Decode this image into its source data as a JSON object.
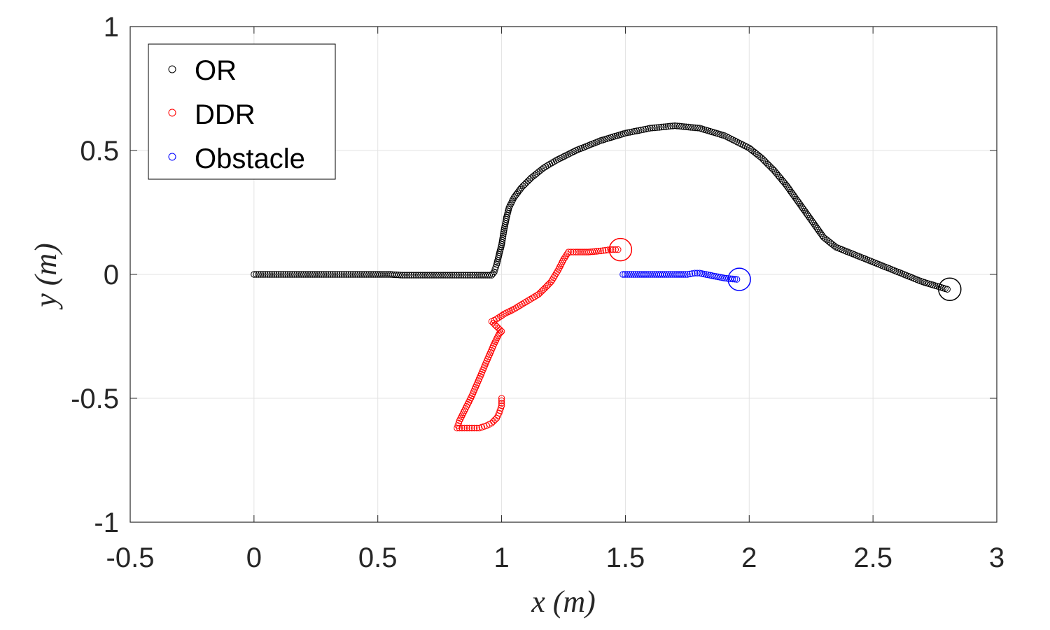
{
  "chart_data": {
    "type": "scatter",
    "title": "",
    "xlabel": "x (m)",
    "ylabel": "y (m)",
    "xlim": [
      -0.5,
      3
    ],
    "ylim": [
      -1,
      1
    ],
    "xticks": [
      -0.5,
      0,
      0.5,
      1,
      1.5,
      2,
      2.5,
      3
    ],
    "yticks": [
      -1,
      -0.5,
      0,
      0.5,
      1
    ],
    "xtick_labels": [
      "-0.5",
      "0",
      "0.5",
      "1",
      "1.5",
      "2",
      "2.5",
      "3"
    ],
    "ytick_labels": [
      "-1",
      "-0.5",
      "0",
      "0.5",
      "1"
    ],
    "grid": true,
    "legend_position": "top-left",
    "marker": "open-circle",
    "series": [
      {
        "name": "OR",
        "color": "#000000",
        "points": [
          [
            0.0,
            0.0
          ],
          [
            0.1,
            0.0
          ],
          [
            0.2,
            0.0
          ],
          [
            0.3,
            0.0
          ],
          [
            0.4,
            0.0
          ],
          [
            0.5,
            0.0
          ],
          [
            0.55,
            0.0
          ],
          [
            0.6,
            -0.003
          ],
          [
            0.7,
            -0.003
          ],
          [
            0.8,
            -0.003
          ],
          [
            0.9,
            -0.003
          ],
          [
            0.96,
            -0.003
          ],
          [
            0.97,
            0.01
          ],
          [
            0.98,
            0.04
          ],
          [
            0.99,
            0.08
          ],
          [
            1.0,
            0.12
          ],
          [
            1.01,
            0.18
          ],
          [
            1.02,
            0.23
          ],
          [
            1.03,
            0.27
          ],
          [
            1.05,
            0.31
          ],
          [
            1.08,
            0.35
          ],
          [
            1.12,
            0.39
          ],
          [
            1.17,
            0.43
          ],
          [
            1.22,
            0.46
          ],
          [
            1.3,
            0.5
          ],
          [
            1.4,
            0.54
          ],
          [
            1.5,
            0.57
          ],
          [
            1.6,
            0.59
          ],
          [
            1.7,
            0.6
          ],
          [
            1.8,
            0.59
          ],
          [
            1.9,
            0.56
          ],
          [
            2.0,
            0.51
          ],
          [
            2.05,
            0.47
          ],
          [
            2.1,
            0.42
          ],
          [
            2.15,
            0.36
          ],
          [
            2.2,
            0.29
          ],
          [
            2.25,
            0.22
          ],
          [
            2.3,
            0.15
          ],
          [
            2.35,
            0.11
          ],
          [
            2.4,
            0.09
          ],
          [
            2.5,
            0.05
          ],
          [
            2.6,
            0.01
          ],
          [
            2.7,
            -0.03
          ],
          [
            2.8,
            -0.06
          ]
        ],
        "end_marker": [
          2.81,
          -0.06
        ]
      },
      {
        "name": "DDR",
        "color": "#ff0000",
        "points": [
          [
            1.0,
            -0.5
          ],
          [
            1.0,
            -0.53
          ],
          [
            0.99,
            -0.56
          ],
          [
            0.98,
            -0.58
          ],
          [
            0.96,
            -0.6
          ],
          [
            0.94,
            -0.61
          ],
          [
            0.91,
            -0.62
          ],
          [
            0.88,
            -0.62
          ],
          [
            0.85,
            -0.62
          ],
          [
            0.82,
            -0.62
          ],
          [
            0.83,
            -0.59
          ],
          [
            0.85,
            -0.55
          ],
          [
            0.88,
            -0.49
          ],
          [
            0.91,
            -0.42
          ],
          [
            0.94,
            -0.35
          ],
          [
            0.97,
            -0.28
          ],
          [
            0.99,
            -0.24
          ],
          [
            1.0,
            -0.23
          ],
          [
            0.98,
            -0.21
          ],
          [
            0.96,
            -0.19
          ],
          [
            0.98,
            -0.18
          ],
          [
            1.01,
            -0.16
          ],
          [
            1.05,
            -0.14
          ],
          [
            1.1,
            -0.11
          ],
          [
            1.15,
            -0.08
          ],
          [
            1.2,
            -0.03
          ],
          [
            1.23,
            0.02
          ],
          [
            1.25,
            0.06
          ],
          [
            1.27,
            0.09
          ],
          [
            1.3,
            0.09
          ],
          [
            1.35,
            0.09
          ],
          [
            1.4,
            0.095
          ],
          [
            1.44,
            0.1
          ],
          [
            1.47,
            0.1
          ]
        ],
        "end_marker": [
          1.48,
          0.1
        ]
      },
      {
        "name": "Obstacle",
        "color": "#0000ff",
        "points": [
          [
            1.49,
            0.0
          ],
          [
            1.55,
            0.0
          ],
          [
            1.6,
            0.0
          ],
          [
            1.65,
            0.0
          ],
          [
            1.7,
            0.0
          ],
          [
            1.75,
            0.0
          ],
          [
            1.78,
            0.005
          ],
          [
            1.8,
            0.005
          ],
          [
            1.85,
            -0.005
          ],
          [
            1.9,
            -0.015
          ],
          [
            1.95,
            -0.02
          ]
        ],
        "end_marker": [
          1.96,
          -0.02
        ]
      }
    ]
  }
}
